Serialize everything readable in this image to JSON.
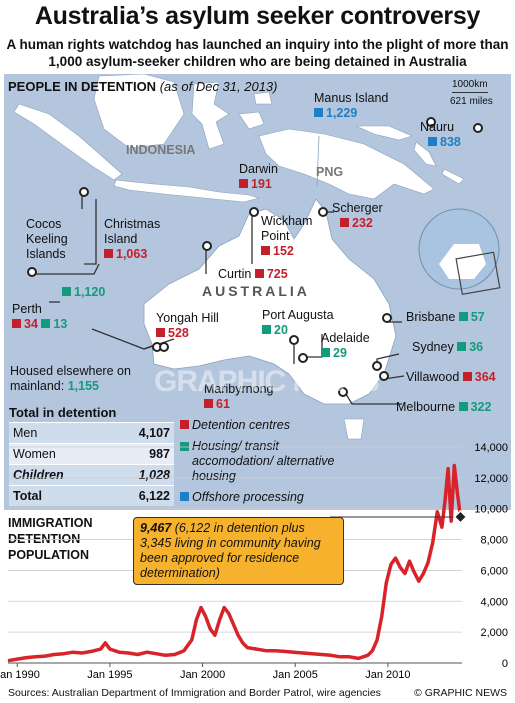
{
  "title": "Australia’s asylum seeker controversy",
  "subtitle": "A human rights watchdog has launched an inquiry into the plight of more than 1,000 asylum-seeker children who are being detained in Australia",
  "map": {
    "heading": "PEOPLE IN DETENTION",
    "heading_date": "(as of Dec 31, 2013)",
    "scale_km": "1000km",
    "scale_miles": "621 miles",
    "regions": {
      "indonesia": "INDONESIA",
      "png": "PNG",
      "australia": "AUSTRALIA"
    },
    "locations": {
      "manus": {
        "name": "Manus Island",
        "value": "1,229",
        "color": "#1e7fc7"
      },
      "nauru": {
        "name": "Nauru",
        "value": "838",
        "color": "#1e7fc7"
      },
      "darwin": {
        "name": "Darwin",
        "value": "191",
        "color": "#c4202c"
      },
      "scherger": {
        "name": "Scherger",
        "value": "232",
        "color": "#c4202c"
      },
      "cocos": {
        "name": "Cocos Keeling Islands",
        "value": "1,120",
        "color": "#149a7c"
      },
      "christmas": {
        "name": "Christmas Island",
        "value": "1,063",
        "color": "#c4202c"
      },
      "wickham": {
        "name": "Wickham Point",
        "value": "152",
        "color": "#c4202c"
      },
      "curtin": {
        "name": "Curtin",
        "value": "725",
        "color": "#c4202c"
      },
      "perth": {
        "name": "Perth",
        "value_red": "34",
        "value_green": "13"
      },
      "yongah": {
        "name": "Yongah Hill",
        "value": "528",
        "color": "#c4202c"
      },
      "port_augusta": {
        "name": "Port Augusta",
        "value": "20",
        "color": "#149a7c"
      },
      "adelaide": {
        "name": "Adelaide",
        "value": "29",
        "color": "#149a7c"
      },
      "brisbane": {
        "name": "Brisbane",
        "value": "57",
        "color": "#149a7c"
      },
      "sydney": {
        "name": "Sydney",
        "value": "36",
        "color": "#149a7c"
      },
      "villawood": {
        "name": "Villawood",
        "value": "364",
        "color": "#c4202c"
      },
      "maribyrnong": {
        "name": "Maribyrnong",
        "value": "61",
        "color": "#c4202c"
      },
      "melbourne": {
        "name": "Melbourne",
        "value": "322",
        "color": "#149a7c"
      }
    },
    "mainland_label": "Housed elsewhere on mainland:",
    "mainland_value": "1,155"
  },
  "totals": {
    "heading": "Total in detention",
    "rows": [
      {
        "label": "Men",
        "value": "4,107"
      },
      {
        "label": "Women",
        "value": "987"
      },
      {
        "label": "Children",
        "value": "1,028"
      },
      {
        "label": "Total",
        "value": "6,122"
      }
    ]
  },
  "legend": [
    {
      "label": "Detention centres",
      "color": "#c4202c"
    },
    {
      "label": "Housing/ transit accomodation/ alternative housing",
      "color": "#149a7c"
    },
    {
      "label": "Offshore processing",
      "color": "#1e7fc7"
    }
  ],
  "chart_title": "IMMIGRATION DETENTION POPULATION",
  "callout": {
    "value": "9,467",
    "text": "(6,122 in detention plus 3,345 living in community having been approved for residence determination)"
  },
  "chart_data": {
    "type": "line",
    "title": "IMMIGRATION DETENTION POPULATION",
    "ylim": [
      0,
      14000
    ],
    "yticks": [
      "0",
      "2,000",
      "4,000",
      "6,000",
      "8,000",
      "10,000",
      "12,000",
      "14,000"
    ],
    "xticks": [
      "Jan 1990",
      "Jan 1995",
      "Jan 2000",
      "Jan 2005",
      "Jan 2010"
    ],
    "xlim": [
      "1989-07",
      "2014-01"
    ],
    "series": [
      {
        "color": "#d8232a",
        "x": [
          "1989-07",
          "1990-01",
          "1990-07",
          "1991-01",
          "1991-07",
          "1992-01",
          "1992-07",
          "1993-01",
          "1993-07",
          "1994-01",
          "1994-07",
          "1994-10",
          "1995-01",
          "1995-07",
          "1996-01",
          "1996-07",
          "1997-01",
          "1997-07",
          "1998-01",
          "1998-07",
          "1999-01",
          "1999-06",
          "1999-09",
          "1999-12",
          "2000-03",
          "2000-06",
          "2000-09",
          "2000-12",
          "2001-03",
          "2001-06",
          "2001-09",
          "2001-12",
          "2002-03",
          "2002-06",
          "2002-12",
          "2003-06",
          "2003-12",
          "2004-06",
          "2004-12",
          "2005-06",
          "2005-12",
          "2006-06",
          "2006-12",
          "2007-06",
          "2007-12",
          "2008-06",
          "2008-12",
          "2009-03",
          "2009-06",
          "2009-09",
          "2009-12",
          "2010-03",
          "2010-06",
          "2010-09",
          "2010-12",
          "2011-03",
          "2011-06",
          "2011-09",
          "2011-12",
          "2012-03",
          "2012-06",
          "2012-09",
          "2012-12",
          "2013-02",
          "2013-04",
          "2013-06",
          "2013-08",
          "2013-10",
          "2013-12"
        ],
        "y": [
          150,
          250,
          350,
          400,
          450,
          550,
          600,
          700,
          650,
          750,
          900,
          1300,
          900,
          700,
          650,
          550,
          700,
          600,
          500,
          550,
          800,
          1500,
          2800,
          3600,
          3000,
          2200,
          1800,
          2800,
          3600,
          3200,
          2500,
          1800,
          1300,
          1000,
          900,
          800,
          800,
          750,
          700,
          650,
          600,
          550,
          500,
          400,
          400,
          300,
          500,
          800,
          1500,
          3000,
          5200,
          6400,
          6800,
          6200,
          5800,
          6600,
          5900,
          5300,
          5800,
          6500,
          7800,
          9800,
          8800,
          10500,
          12600,
          9200,
          12800,
          11000,
          9467
        ]
      }
    ]
  },
  "sources": "Sources: Australian Department of Immigration and Border Patrol, wire agencies",
  "brand": "© GRAPHIC NEWS",
  "watermark": "GRAPHIC NEWS"
}
